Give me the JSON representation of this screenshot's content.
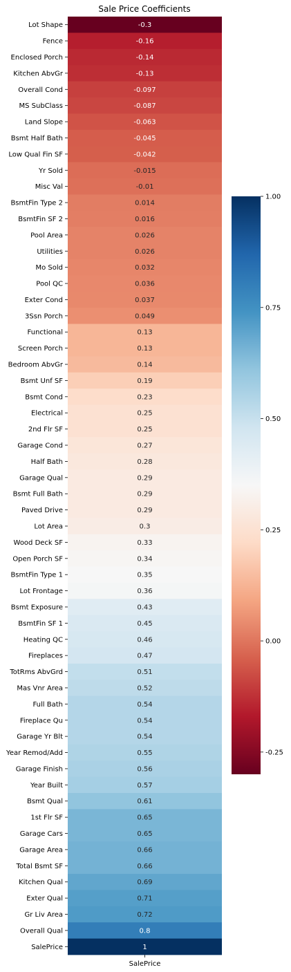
{
  "chart_data": {
    "type": "heatmap",
    "title": "Sale Price Coefficients",
    "columns": [
      "SalePrice"
    ],
    "rows": [
      {
        "label": "Lot Shape",
        "value": -0.3,
        "text": "-0.3"
      },
      {
        "label": "Fence",
        "value": -0.16,
        "text": "-0.16"
      },
      {
        "label": "Enclosed Porch",
        "value": -0.14,
        "text": "-0.14"
      },
      {
        "label": "Kitchen AbvGr",
        "value": -0.13,
        "text": "-0.13"
      },
      {
        "label": "Overall Cond",
        "value": -0.097,
        "text": "-0.097"
      },
      {
        "label": "MS SubClass",
        "value": -0.087,
        "text": "-0.087"
      },
      {
        "label": "Land Slope",
        "value": -0.063,
        "text": "-0.063"
      },
      {
        "label": "Bsmt Half Bath",
        "value": -0.045,
        "text": "-0.045"
      },
      {
        "label": "Low Qual Fin SF",
        "value": -0.042,
        "text": "-0.042"
      },
      {
        "label": "Yr Sold",
        "value": -0.015,
        "text": "-0.015"
      },
      {
        "label": "Misc Val",
        "value": -0.01,
        "text": "-0.01"
      },
      {
        "label": "BsmtFin Type 2",
        "value": 0.014,
        "text": "0.014"
      },
      {
        "label": "BsmtFin SF 2",
        "value": 0.016,
        "text": "0.016"
      },
      {
        "label": "Pool Area",
        "value": 0.026,
        "text": "0.026"
      },
      {
        "label": "Utilities",
        "value": 0.026,
        "text": "0.026"
      },
      {
        "label": "Mo Sold",
        "value": 0.032,
        "text": "0.032"
      },
      {
        "label": "Pool QC",
        "value": 0.036,
        "text": "0.036"
      },
      {
        "label": "Exter Cond",
        "value": 0.037,
        "text": "0.037"
      },
      {
        "label": "3Ssn Porch",
        "value": 0.049,
        "text": "0.049"
      },
      {
        "label": "Functional",
        "value": 0.13,
        "text": "0.13"
      },
      {
        "label": "Screen Porch",
        "value": 0.13,
        "text": "0.13"
      },
      {
        "label": "Bedroom AbvGr",
        "value": 0.14,
        "text": "0.14"
      },
      {
        "label": "Bsmt Unf SF",
        "value": 0.19,
        "text": "0.19"
      },
      {
        "label": "Bsmt Cond",
        "value": 0.23,
        "text": "0.23"
      },
      {
        "label": "Electrical",
        "value": 0.25,
        "text": "0.25"
      },
      {
        "label": "2nd Flr SF",
        "value": 0.25,
        "text": "0.25"
      },
      {
        "label": "Garage Cond",
        "value": 0.27,
        "text": "0.27"
      },
      {
        "label": "Half Bath",
        "value": 0.28,
        "text": "0.28"
      },
      {
        "label": "Garage Qual",
        "value": 0.29,
        "text": "0.29"
      },
      {
        "label": "Bsmt Full Bath",
        "value": 0.29,
        "text": "0.29"
      },
      {
        "label": "Paved Drive",
        "value": 0.29,
        "text": "0.29"
      },
      {
        "label": "Lot Area",
        "value": 0.3,
        "text": "0.3"
      },
      {
        "label": "Wood Deck SF",
        "value": 0.33,
        "text": "0.33"
      },
      {
        "label": "Open Porch SF",
        "value": 0.34,
        "text": "0.34"
      },
      {
        "label": "BsmtFin Type 1",
        "value": 0.35,
        "text": "0.35"
      },
      {
        "label": "Lot Frontage",
        "value": 0.36,
        "text": "0.36"
      },
      {
        "label": "Bsmt Exposure",
        "value": 0.43,
        "text": "0.43"
      },
      {
        "label": "BsmtFin SF 1",
        "value": 0.45,
        "text": "0.45"
      },
      {
        "label": "Heating QC",
        "value": 0.46,
        "text": "0.46"
      },
      {
        "label": "Fireplaces",
        "value": 0.47,
        "text": "0.47"
      },
      {
        "label": "TotRms AbvGrd",
        "value": 0.51,
        "text": "0.51"
      },
      {
        "label": "Mas Vnr Area",
        "value": 0.52,
        "text": "0.52"
      },
      {
        "label": "Full Bath",
        "value": 0.54,
        "text": "0.54"
      },
      {
        "label": "Fireplace Qu",
        "value": 0.54,
        "text": "0.54"
      },
      {
        "label": "Garage Yr Blt",
        "value": 0.54,
        "text": "0.54"
      },
      {
        "label": "Year Remod/Add",
        "value": 0.55,
        "text": "0.55"
      },
      {
        "label": "Garage Finish",
        "value": 0.56,
        "text": "0.56"
      },
      {
        "label": "Year Built",
        "value": 0.57,
        "text": "0.57"
      },
      {
        "label": "Bsmt Qual",
        "value": 0.61,
        "text": "0.61"
      },
      {
        "label": "1st Flr SF",
        "value": 0.65,
        "text": "0.65"
      },
      {
        "label": "Garage Cars",
        "value": 0.65,
        "text": "0.65"
      },
      {
        "label": "Garage Area",
        "value": 0.66,
        "text": "0.66"
      },
      {
        "label": "Total Bsmt SF",
        "value": 0.66,
        "text": "0.66"
      },
      {
        "label": "Kitchen Qual",
        "value": 0.69,
        "text": "0.69"
      },
      {
        "label": "Exter Qual",
        "value": 0.71,
        "text": "0.71"
      },
      {
        "label": "Gr Liv Area",
        "value": 0.72,
        "text": "0.72"
      },
      {
        "label": "Overall Qual",
        "value": 0.8,
        "text": "0.8"
      },
      {
        "label": "SalePrice",
        "value": 1,
        "text": "1"
      }
    ],
    "colorbar": {
      "colormap": "RdBu",
      "vmin": -0.3,
      "vmax": 1.0,
      "ticks": [
        1.0,
        0.75,
        0.5,
        0.25,
        0.0,
        -0.25
      ],
      "tick_labels": [
        "1.00",
        "0.75",
        "0.50",
        "0.25",
        "0.00",
        "-0.25"
      ]
    },
    "xlabel": "",
    "ylabel": "",
    "grid": false,
    "legend": "colorbar-right"
  }
}
